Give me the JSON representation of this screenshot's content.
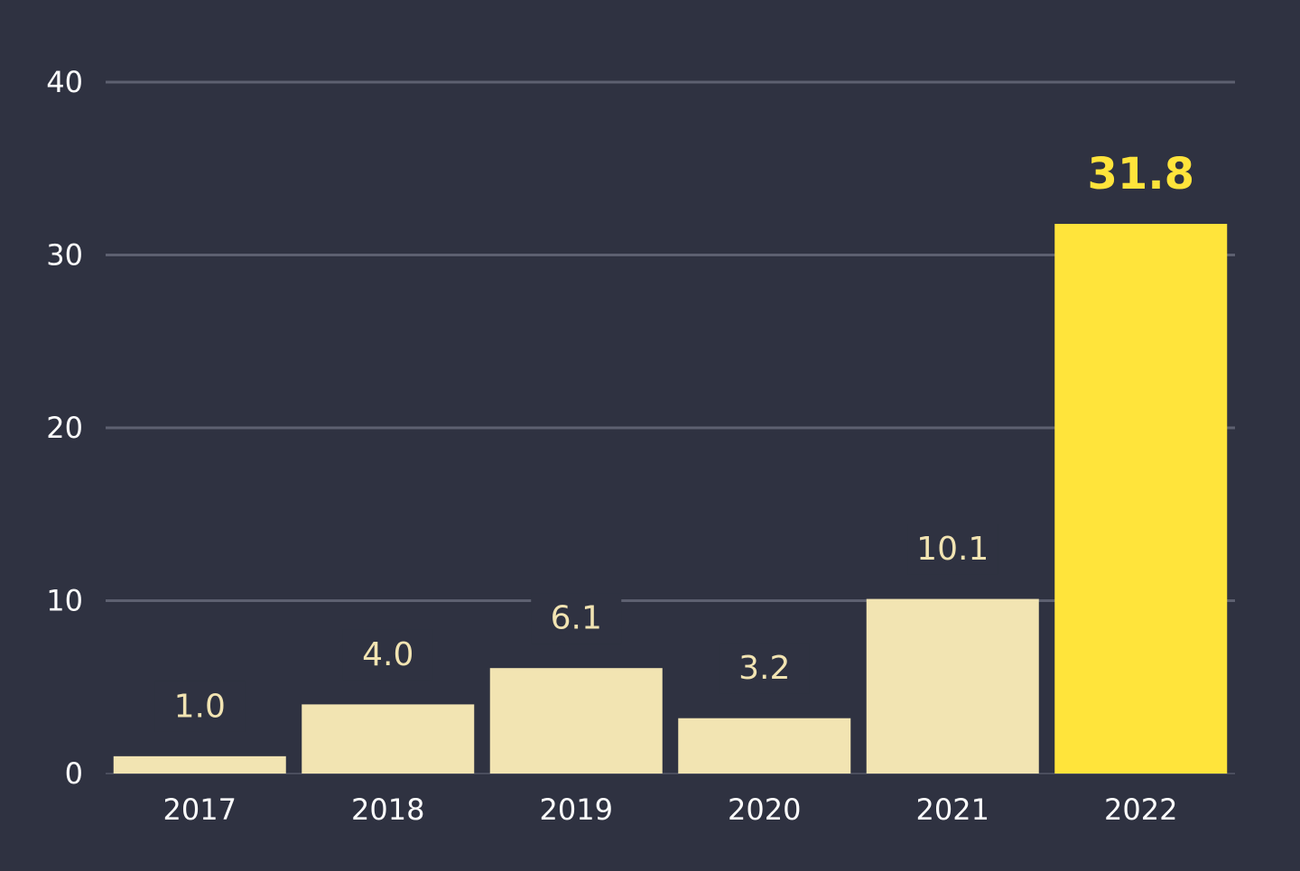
{
  "chart_data": {
    "type": "bar",
    "title": "",
    "xlabel": "",
    "ylabel": "",
    "categories": [
      "2017",
      "2018",
      "2019",
      "2020",
      "2021",
      "2022"
    ],
    "values": [
      1.0,
      4.0,
      6.1,
      3.2,
      10.1,
      31.8
    ],
    "value_labels": [
      "1.0",
      "4.0",
      "6.1",
      "3.2",
      "10.1",
      "31.8"
    ],
    "ylim": [
      0,
      40
    ],
    "y_ticks": [
      0,
      10,
      20,
      30,
      40
    ],
    "y_tick_labels": [
      "0",
      "10",
      "20",
      "30",
      "40"
    ],
    "grid": true,
    "legend": "none",
    "highlight_index": 5
  },
  "colors": {
    "background": "#2f3241",
    "bar": "#f2e4b2",
    "bar_highlight": "#ffe43b",
    "value_label": "#f2e4b2",
    "value_label_highlight": "#ffe43b",
    "axis_text": "#ffffff",
    "grid": "#5d6070",
    "baseline": "#4b4e5e"
  }
}
